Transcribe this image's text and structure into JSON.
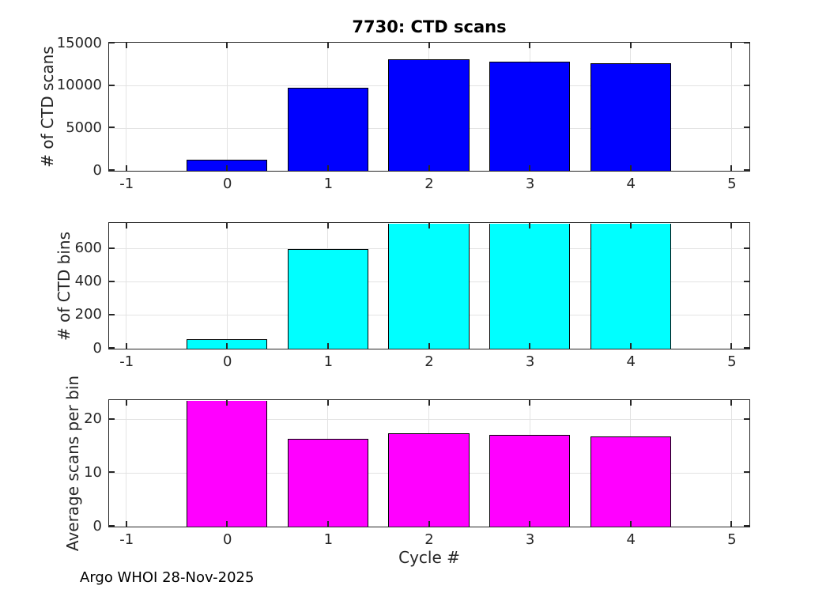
{
  "figure": {
    "footer": "Argo WHOI 28-Nov-2025"
  },
  "chart_data": [
    {
      "type": "bar",
      "title": "7730: CTD scans",
      "ylabel": "# of CTD scans",
      "x": [
        0,
        1,
        2,
        3,
        4
      ],
      "values": [
        1300,
        9800,
        13100,
        12900,
        12700
      ],
      "clipped": [
        false,
        false,
        false,
        false,
        false
      ],
      "bar_width": 0.8,
      "bar_color": "#0000ff",
      "edge_color": "#000000",
      "xlim": [
        -1.17,
        5.17
      ],
      "ylim": [
        0,
        15000
      ],
      "xticks": [
        -1,
        0,
        1,
        2,
        3,
        4,
        5
      ],
      "yticks": [
        0,
        5000,
        10000,
        15000
      ],
      "grid": true
    },
    {
      "type": "bar",
      "ylabel": "# of CTD bins",
      "x": [
        0,
        1,
        2,
        3,
        4
      ],
      "values": [
        55,
        600,
        755,
        752,
        750
      ],
      "clipped": [
        false,
        false,
        true,
        true,
        true
      ],
      "bar_width": 0.8,
      "bar_color": "#00ffff",
      "edge_color": "#000000",
      "xlim": [
        -1.17,
        5.17
      ],
      "ylim": [
        0,
        750
      ],
      "xticks": [
        -1,
        0,
        1,
        2,
        3,
        4,
        5
      ],
      "yticks": [
        0,
        200,
        400,
        600
      ],
      "grid": true
    },
    {
      "type": "bar",
      "ylabel": "Average scans per bin",
      "xlabel": "Cycle #",
      "x": [
        0,
        1,
        2,
        3,
        4
      ],
      "values": [
        23.6,
        16.4,
        17.4,
        17.2,
        16.9
      ],
      "clipped": [
        true,
        false,
        false,
        false,
        false
      ],
      "bar_width": 0.8,
      "bar_color": "#ff00ff",
      "edge_color": "#000000",
      "xlim": [
        -1.17,
        5.17
      ],
      "ylim": [
        0,
        23.5
      ],
      "xticks": [
        -1,
        0,
        1,
        2,
        3,
        4,
        5
      ],
      "yticks": [
        0,
        10,
        20
      ],
      "grid": true
    }
  ]
}
